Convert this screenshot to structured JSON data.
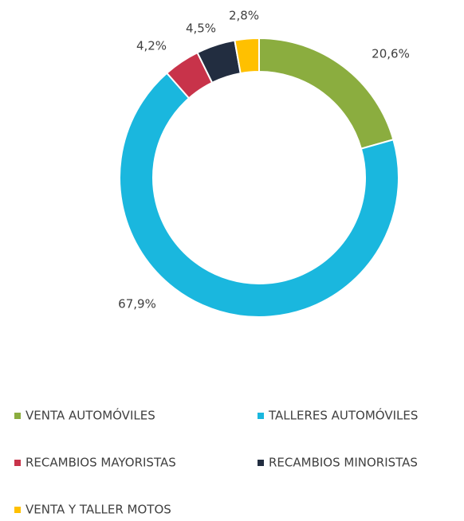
{
  "chart_data": {
    "type": "donut",
    "categories": [
      "VENTA AUTOMÓVILES",
      "TALLERES AUTOMÓVILES",
      "RECAMBIOS MAYORISTAS",
      "RECAMBIOS MINORISTAS",
      "VENTA Y TALLER MOTOS"
    ],
    "values": [
      20.6,
      67.9,
      4.2,
      4.5,
      2.8
    ],
    "value_labels": [
      "20,6%",
      "67,9%",
      "4,2%",
      "4,5%",
      "2,8%"
    ],
    "colors": [
      "#8bad3f",
      "#1ab7de",
      "#c8334a",
      "#222d40",
      "#ffc000"
    ],
    "legend": "bottom"
  }
}
